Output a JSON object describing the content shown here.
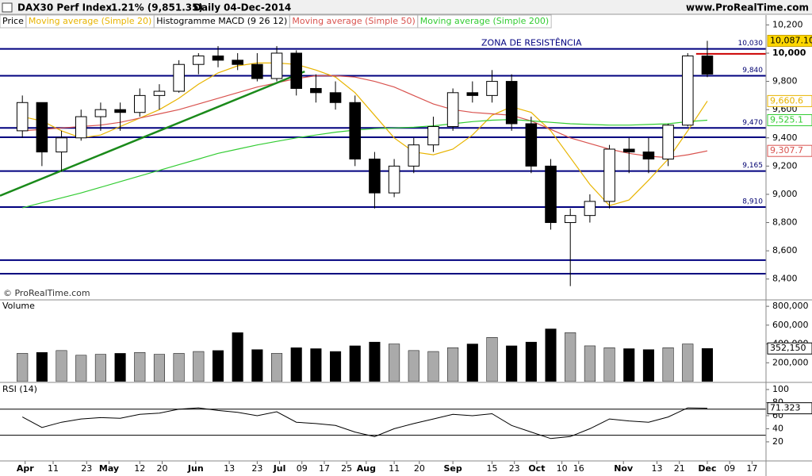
{
  "header": {
    "title": "DAX30 Perf Index",
    "change": "-1.21% (9,851.35)",
    "period": "Daily",
    "date": "04-Dec-2014",
    "site": "www.ProRealTime.com"
  },
  "chart_data": [
    {
      "type": "candlestick",
      "name": "Price",
      "indicator": "Histogramme MACD (9 26 12)",
      "annotation": "ZONA DE RESISTÊNCIA",
      "watermark": "© ProRealTime.com",
      "xlim": [
        "2014-03-23",
        "2014-12-22"
      ],
      "x": [
        "2014-03-31",
        "2014-04-07",
        "2014-04-14",
        "2014-04-21",
        "2014-04-28",
        "2014-05-05",
        "2014-05-12",
        "2014-05-19",
        "2014-05-26",
        "2014-06-02",
        "2014-06-09",
        "2014-06-16",
        "2014-06-23",
        "2014-06-30",
        "2014-07-07",
        "2014-07-14",
        "2014-07-21",
        "2014-07-28",
        "2014-08-04",
        "2014-08-11",
        "2014-08-18",
        "2014-08-25",
        "2014-09-01",
        "2014-09-08",
        "2014-09-15",
        "2014-09-22",
        "2014-09-29",
        "2014-10-06",
        "2014-10-13",
        "2014-10-20",
        "2014-10-27",
        "2014-11-03",
        "2014-11-10",
        "2014-11-17",
        "2014-11-24",
        "2014-12-01"
      ],
      "open": [
        9450,
        9650,
        9300,
        9400,
        9550,
        9600,
        9580,
        9700,
        9730,
        9920,
        9980,
        9950,
        9920,
        9820,
        10000,
        9750,
        9720,
        9650,
        9250,
        9010,
        9200,
        9350,
        9480,
        9720,
        9700,
        9800,
        9500,
        9200,
        8800,
        8850,
        8950,
        9320,
        9300,
        9250,
        9490,
        9980
      ],
      "high": [
        9700,
        9650,
        9450,
        9600,
        9650,
        9650,
        9750,
        9780,
        9950,
        10000,
        10050,
        10000,
        10000,
        10050,
        10020,
        9850,
        9800,
        9700,
        9300,
        9250,
        9400,
        9550,
        9750,
        9800,
        9880,
        9850,
        9550,
        9250,
        8900,
        9000,
        9350,
        9400,
        9400,
        9500,
        10000,
        10087.1
      ],
      "low": [
        9400,
        9200,
        9160,
        9380,
        9450,
        9450,
        9550,
        9600,
        9720,
        9850,
        9900,
        9880,
        9800,
        9800,
        9700,
        9650,
        9600,
        9200,
        8900,
        8980,
        9150,
        9300,
        9450,
        9650,
        9650,
        9450,
        9150,
        8750,
        8350,
        8800,
        8900,
        9150,
        9150,
        9200,
        9480,
        9830
      ],
      "close": [
        9650,
        9300,
        9400,
        9550,
        9600,
        9580,
        9700,
        9730,
        9920,
        9980,
        9950,
        9920,
        9820,
        10000,
        9750,
        9720,
        9650,
        9250,
        9010,
        9200,
        9350,
        9480,
        9720,
        9700,
        9800,
        9500,
        9200,
        8800,
        8850,
        8950,
        9320,
        9300,
        9250,
        9490,
        9980,
        9851.35
      ],
      "price_label": {
        "value": 10087.1,
        "label": "10,087.10"
      },
      "series": [
        {
          "name": "Moving average (Simple 20)",
          "color": "#e8b400",
          "end_label": "9,660.6",
          "values": [
            9550,
            9520,
            9450,
            9400,
            9420,
            9480,
            9540,
            9600,
            9680,
            9780,
            9860,
            9910,
            9930,
            9930,
            9920,
            9880,
            9830,
            9720,
            9560,
            9400,
            9300,
            9280,
            9320,
            9420,
            9560,
            9620,
            9580,
            9450,
            9260,
            9070,
            8920,
            8960,
            9100,
            9250,
            9450,
            9660.6
          ]
        },
        {
          "name": "Moving average (Simple 50)",
          "color": "#d9534f",
          "end_label": "9,307.7",
          "values": [
            9450,
            9460,
            9470,
            9480,
            9490,
            9510,
            9540,
            9570,
            9600,
            9640,
            9680,
            9720,
            9760,
            9790,
            9820,
            9840,
            9840,
            9830,
            9800,
            9760,
            9700,
            9640,
            9600,
            9580,
            9570,
            9560,
            9520,
            9460,
            9400,
            9360,
            9320,
            9290,
            9270,
            9260,
            9280,
            9307.7
          ]
        },
        {
          "name": "Moving average (Simple 200)",
          "color": "#33cc33",
          "end_label": "9,525.1",
          "values": [
            8905,
            8940,
            8975,
            9010,
            9050,
            9090,
            9130,
            9170,
            9210,
            9250,
            9290,
            9320,
            9350,
            9375,
            9400,
            9420,
            9440,
            9455,
            9465,
            9470,
            9475,
            9485,
            9500,
            9515,
            9525,
            9530,
            9520,
            9510,
            9500,
            9495,
            9490,
            9490,
            9495,
            9500,
            9515,
            9525.1
          ]
        }
      ],
      "levels": [
        {
          "value": 10030,
          "label": "10,030"
        },
        {
          "value": 9840,
          "label": "9,840"
        },
        {
          "value": 9470,
          "label": "9,470"
        },
        {
          "value": 9404
        },
        {
          "value": 9165,
          "label": "9,165"
        },
        {
          "value": 8910,
          "label": "8,910"
        },
        {
          "value": 8534
        },
        {
          "value": 8438
        }
      ],
      "level_color": "#00007f",
      "trendline": {
        "x": [
          "2014-03-23",
          "2014-07-10"
        ],
        "values": [
          8990,
          9870
        ],
        "color": "#1a8a1a"
      },
      "resistance_line": {
        "x": [
          "2014-11-27",
          "2014-12-22"
        ],
        "values": [
          9995,
          9995
        ],
        "color": "#cc0000"
      },
      "ylim": [
        8258,
        10264
      ],
      "yticks": [
        {
          "value": 8400,
          "label": "8,400"
        },
        {
          "value": 8600,
          "label": "8,600"
        },
        {
          "value": 8800,
          "label": "8,800"
        },
        {
          "value": 9000,
          "label": "9,000"
        },
        {
          "value": 9200,
          "label": "9,200"
        },
        {
          "value": 9400,
          "label": "9,400"
        },
        {
          "value": 9600,
          "label": "9,600"
        },
        {
          "value": 9800,
          "label": "9,800"
        },
        {
          "value": 10000,
          "label": "10,000"
        },
        {
          "value": 10200,
          "label": "10,200"
        }
      ]
    },
    {
      "type": "bar",
      "title": "Volume",
      "xlim": [
        "2014-03-23",
        "2014-12-22"
      ],
      "x": [
        "2014-03-31",
        "2014-04-07",
        "2014-04-14",
        "2014-04-21",
        "2014-04-28",
        "2014-05-05",
        "2014-05-12",
        "2014-05-19",
        "2014-05-26",
        "2014-06-02",
        "2014-06-09",
        "2014-06-16",
        "2014-06-23",
        "2014-06-30",
        "2014-07-07",
        "2014-07-14",
        "2014-07-21",
        "2014-07-28",
        "2014-08-04",
        "2014-08-11",
        "2014-08-18",
        "2014-08-25",
        "2014-09-01",
        "2014-09-08",
        "2014-09-15",
        "2014-09-22",
        "2014-09-29",
        "2014-10-06",
        "2014-10-13",
        "2014-10-20",
        "2014-10-27",
        "2014-11-03",
        "2014-11-10",
        "2014-11-17",
        "2014-11-24",
        "2014-12-01"
      ],
      "values": [
        300000,
        310000,
        330000,
        280000,
        290000,
        300000,
        310000,
        290000,
        300000,
        320000,
        330000,
        520000,
        340000,
        300000,
        360000,
        350000,
        320000,
        380000,
        420000,
        400000,
        330000,
        320000,
        360000,
        400000,
        470000,
        380000,
        420000,
        560000,
        520000,
        380000,
        360000,
        350000,
        340000,
        360000,
        400000,
        352150
      ],
      "end_label": "352,150",
      "ylim": [
        0,
        860000
      ],
      "yticks": [
        {
          "value": 200000,
          "label": "200,000"
        },
        {
          "value": 400000,
          "label": "400,000"
        },
        {
          "value": 600000,
          "label": "600,000"
        },
        {
          "value": 800000,
          "label": "800,000"
        }
      ]
    },
    {
      "type": "line",
      "title": "RSI (14)",
      "color": "#000000",
      "xlim": [
        "2014-03-23",
        "2014-12-22"
      ],
      "x": [
        "2014-03-31",
        "2014-04-07",
        "2014-04-14",
        "2014-04-21",
        "2014-04-28",
        "2014-05-05",
        "2014-05-12",
        "2014-05-19",
        "2014-05-26",
        "2014-06-02",
        "2014-06-09",
        "2014-06-16",
        "2014-06-23",
        "2014-06-30",
        "2014-07-07",
        "2014-07-14",
        "2014-07-21",
        "2014-07-28",
        "2014-08-04",
        "2014-08-11",
        "2014-08-18",
        "2014-08-25",
        "2014-09-01",
        "2014-09-08",
        "2014-09-15",
        "2014-09-22",
        "2014-09-29",
        "2014-10-06",
        "2014-10-13",
        "2014-10-20",
        "2014-10-27",
        "2014-11-03",
        "2014-11-10",
        "2014-11-17",
        "2014-11-24",
        "2014-12-01"
      ],
      "values": [
        58,
        42,
        50,
        55,
        57,
        56,
        62,
        64,
        70,
        72,
        68,
        65,
        60,
        66,
        50,
        48,
        45,
        35,
        28,
        40,
        48,
        55,
        62,
        60,
        63,
        45,
        35,
        25,
        28,
        40,
        55,
        52,
        50,
        58,
        72,
        71.323
      ],
      "end_label": "71.323",
      "bands": [
        70,
        30
      ],
      "ylim": [
        -8,
        108.5
      ],
      "yticks": [
        20,
        40,
        60,
        80,
        100
      ],
      "xticks": [
        {
          "value": "2014-04-01",
          "label": "Apr"
        },
        {
          "value": "2014-04-11",
          "label": "11"
        },
        {
          "value": "2014-04-23",
          "label": "23"
        },
        {
          "value": "2014-05-01",
          "label": "May"
        },
        {
          "value": "2014-05-12",
          "label": "12"
        },
        {
          "value": "2014-05-20",
          "label": "20"
        },
        {
          "value": "2014-06-01",
          "label": "Jun"
        },
        {
          "value": "2014-06-13",
          "label": "13"
        },
        {
          "value": "2014-06-23",
          "label": "23"
        },
        {
          "value": "2014-07-01",
          "label": "Jul"
        },
        {
          "value": "2014-07-09",
          "label": "09"
        },
        {
          "value": "2014-07-17",
          "label": "17"
        },
        {
          "value": "2014-07-25",
          "label": "25"
        },
        {
          "value": "2014-08-01",
          "label": "Aug"
        },
        {
          "value": "2014-08-11",
          "label": "11"
        },
        {
          "value": "2014-08-20",
          "label": "20"
        },
        {
          "value": "2014-09-01",
          "label": "Sep"
        },
        {
          "value": "2014-09-15",
          "label": "15"
        },
        {
          "value": "2014-09-23",
          "label": "23"
        },
        {
          "value": "2014-10-01",
          "label": "Oct"
        },
        {
          "value": "2014-10-10",
          "label": "10"
        },
        {
          "value": "2014-10-16",
          "label": "16"
        },
        {
          "value": "2014-11-01",
          "label": "Nov"
        },
        {
          "value": "2014-11-13",
          "label": "13"
        },
        {
          "value": "2014-11-21",
          "label": "21"
        },
        {
          "value": "2014-12-01",
          "label": "Dec"
        },
        {
          "value": "2014-12-09",
          "label": "09"
        },
        {
          "value": "2014-12-17",
          "label": "17"
        }
      ]
    }
  ]
}
